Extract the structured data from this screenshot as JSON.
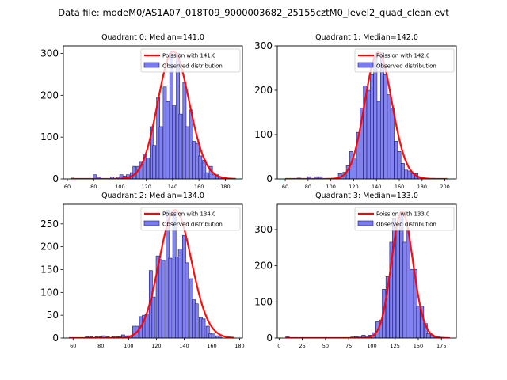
{
  "figure": {
    "suptitle": "Data file: modeM0/AS1A07_018T09_9000003682_25155cztM0_level2_quad_clean.evt"
  },
  "colors": {
    "bar_fill": "#7b7bf0",
    "bar_edge": "#1a1a6e",
    "curve": "#ff0000",
    "axes": "#000000"
  },
  "chart_data": [
    {
      "type": "bar",
      "title": "Quadrant 0: Median=141.0",
      "median": 141.0,
      "legend": [
        "Poission with 141.0",
        "Observed distribution"
      ],
      "legend_position": "top-right",
      "xlim": [
        57,
        193
      ],
      "ylim": [
        0,
        318
      ],
      "xticks": [
        60,
        80,
        100,
        120,
        140,
        160,
        180
      ],
      "yticks": [
        0,
        100,
        200,
        300
      ],
      "bin_width": 2.5,
      "bins": [
        [
          64,
          2
        ],
        [
          81,
          10
        ],
        [
          84,
          5
        ],
        [
          94,
          5
        ],
        [
          99,
          5
        ],
        [
          101,
          10
        ],
        [
          104,
          7
        ],
        [
          106,
          10
        ],
        [
          109,
          15
        ],
        [
          111,
          30
        ],
        [
          114,
          30
        ],
        [
          116,
          40
        ],
        [
          119,
          60
        ],
        [
          121,
          50
        ],
        [
          124,
          125
        ],
        [
          126,
          80
        ],
        [
          129,
          195
        ],
        [
          131,
          125
        ],
        [
          134,
          220
        ],
        [
          136,
          185
        ],
        [
          139,
          305
        ],
        [
          141,
          175
        ],
        [
          144,
          300
        ],
        [
          146,
          155
        ],
        [
          149,
          230
        ],
        [
          151,
          125
        ],
        [
          154,
          165
        ],
        [
          156,
          90
        ],
        [
          159,
          85
        ],
        [
          161,
          55
        ],
        [
          164,
          45
        ],
        [
          166,
          15
        ],
        [
          169,
          30
        ],
        [
          171,
          10
        ],
        [
          174,
          10
        ],
        [
          176,
          5
        ],
        [
          179,
          3
        ],
        [
          181,
          2
        ],
        [
          184,
          1
        ],
        [
          186,
          1
        ]
      ],
      "poisson_mean": 141.0,
      "curve_x_range": [
        63,
        188
      ],
      "curve_peak": 305
    },
    {
      "type": "bar",
      "title": "Quadrant 1: Median=142.0",
      "median": 142.0,
      "legend": [
        "Poission with 142.0",
        "Observed distribution"
      ],
      "legend_position": "top-right",
      "xlim": [
        53,
        210
      ],
      "ylim": [
        0,
        300
      ],
      "xticks": [
        60,
        80,
        100,
        120,
        140,
        160,
        180,
        200
      ],
      "yticks": [
        0,
        100,
        200,
        300
      ],
      "bin_width": 3,
      "bins": [
        [
          72,
          2
        ],
        [
          81,
          5
        ],
        [
          87,
          5
        ],
        [
          91,
          5
        ],
        [
          108,
          12
        ],
        [
          112,
          15
        ],
        [
          115,
          30
        ],
        [
          118,
          62
        ],
        [
          121,
          45
        ],
        [
          124,
          105
        ],
        [
          127,
          160
        ],
        [
          130,
          210
        ],
        [
          133,
          200
        ],
        [
          136,
          235
        ],
        [
          139,
          280
        ],
        [
          142,
          175
        ],
        [
          145,
          285
        ],
        [
          148,
          235
        ],
        [
          151,
          190
        ],
        [
          154,
          160
        ],
        [
          157,
          85
        ],
        [
          160,
          62
        ],
        [
          163,
          35
        ],
        [
          166,
          20
        ],
        [
          169,
          18
        ],
        [
          172,
          12
        ],
        [
          175,
          12
        ],
        [
          178,
          4
        ],
        [
          181,
          2
        ]
      ],
      "poisson_mean": 142.0,
      "curve_x_range": [
        60,
        202
      ],
      "curve_peak": 285
    },
    {
      "type": "bar",
      "title": "Quadrant 2: Median=134.0",
      "median": 134.0,
      "legend": [
        "Poission with 134.0",
        "Observed distribution"
      ],
      "legend_position": "top-right",
      "xlim": [
        53,
        182
      ],
      "ylim": [
        0,
        293
      ],
      "xticks": [
        60,
        80,
        100,
        120,
        140,
        160,
        180
      ],
      "yticks": [
        0,
        50,
        100,
        150,
        200,
        250
      ],
      "bin_width": 2.4,
      "bins": [
        [
          70,
          3
        ],
        [
          73,
          3
        ],
        [
          77,
          3
        ],
        [
          80,
          3
        ],
        [
          82,
          5
        ],
        [
          85,
          3
        ],
        [
          89,
          3
        ],
        [
          92,
          3
        ],
        [
          94,
          3
        ],
        [
          96,
          7
        ],
        [
          99,
          5
        ],
        [
          101,
          5
        ],
        [
          104,
          26
        ],
        [
          106,
          26
        ],
        [
          109,
          47
        ],
        [
          111,
          50
        ],
        [
          113,
          53
        ],
        [
          116,
          148
        ],
        [
          118,
          90
        ],
        [
          121,
          180
        ],
        [
          123,
          172
        ],
        [
          125,
          170
        ],
        [
          128,
          280
        ],
        [
          130,
          175
        ],
        [
          133,
          280
        ],
        [
          135,
          178
        ],
        [
          137,
          195
        ],
        [
          140,
          225
        ],
        [
          142,
          165
        ],
        [
          145,
          130
        ],
        [
          147,
          84
        ],
        [
          149,
          75
        ],
        [
          152,
          45
        ],
        [
          154,
          42
        ],
        [
          157,
          26
        ],
        [
          159,
          10
        ],
        [
          161,
          9
        ],
        [
          164,
          5
        ],
        [
          166,
          2
        ]
      ],
      "poisson_mean": 134.0,
      "curve_x_range": [
        57,
        176
      ],
      "curve_peak": 280
    },
    {
      "type": "bar",
      "title": "Quadrant 3: Median=133.0",
      "median": 133.0,
      "legend": [
        "Poission with 133.0",
        "Observed distribution"
      ],
      "legend_position": "top-right",
      "xlim": [
        -2,
        191
      ],
      "ylim": [
        0,
        370
      ],
      "xticks": [
        0,
        25,
        50,
        75,
        100,
        125,
        150,
        175
      ],
      "yticks": [
        0,
        100,
        200,
        300
      ],
      "bin_width": 3.7,
      "bins": [
        [
          9,
          4
        ],
        [
          79,
          3
        ],
        [
          83,
          4
        ],
        [
          87,
          5
        ],
        [
          91,
          8
        ],
        [
          95,
          5
        ],
        [
          98,
          8
        ],
        [
          102,
          15
        ],
        [
          106,
          45
        ],
        [
          110,
          50
        ],
        [
          113,
          135
        ],
        [
          117,
          170
        ],
        [
          121,
          265
        ],
        [
          124,
          330
        ],
        [
          128,
          300
        ],
        [
          132,
          345
        ],
        [
          135,
          265
        ],
        [
          139,
          300
        ],
        [
          143,
          190
        ],
        [
          147,
          190
        ],
        [
          150,
          88
        ],
        [
          154,
          88
        ],
        [
          158,
          40
        ],
        [
          161,
          12
        ],
        [
          165,
          9
        ],
        [
          169,
          5
        ],
        [
          172,
          5
        ],
        [
          176,
          2
        ]
      ],
      "poisson_mean": 133.0,
      "curve_x_range": [
        7,
        184
      ],
      "curve_peak": 350
    }
  ]
}
